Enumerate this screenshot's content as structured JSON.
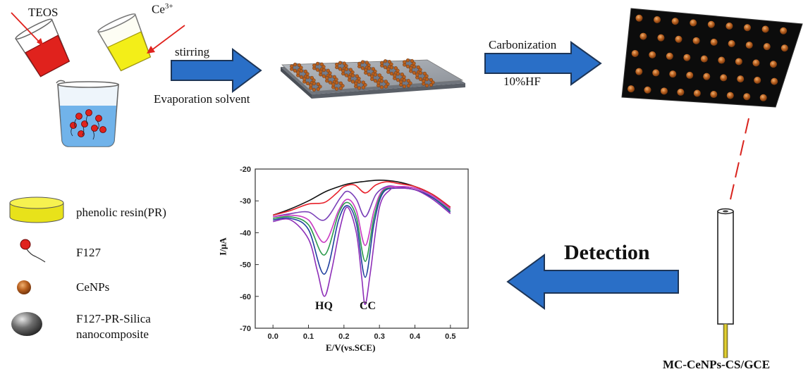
{
  "reagents": {
    "teos": "TEOS",
    "ce": "Ce",
    "ce_sup": "3+"
  },
  "steps": {
    "stirring": "stirring",
    "evaporation": "Evaporation solvent",
    "carbonization": "Carbonization",
    "hf": "10%HF",
    "detection": "Detection"
  },
  "electrode_label": "MC-CeNPs-CS/GCE",
  "legend": [
    {
      "icon": "phenolic-resin-icon",
      "lines": [
        "phenolic resin(PR)"
      ]
    },
    {
      "icon": "f127-icon",
      "lines": [
        "F127"
      ]
    },
    {
      "icon": "cenp-icon",
      "lines": [
        "CeNPs"
      ]
    },
    {
      "icon": "nanocomposite-icon",
      "lines": [
        "F127-PR-Silica",
        "nanocomposite"
      ]
    }
  ],
  "colors": {
    "arrow_fill": "#2a6fc7",
    "arrow_stroke": "#1d3557",
    "teos_liquid": "#e0221d",
    "ce_liquid": "#f3ee18",
    "water": "#5ba7e6",
    "carbon_plate": "#111111",
    "cenp": "#c06a28",
    "pr_disk": "#f2ec1e",
    "dashed_line": "#d9231d"
  },
  "chart_data": {
    "type": "line",
    "xlabel": "E/V(vs.SCE)",
    "ylabel": "I/μA",
    "xlim": [
      -0.05,
      0.55
    ],
    "ylim": [
      -70,
      -20
    ],
    "xticks": [
      0.0,
      0.1,
      0.2,
      0.3,
      0.4,
      0.5
    ],
    "xtick_labels": [
      "0.0",
      "0.1",
      "0.2",
      "0.3",
      "0.4",
      "0.5"
    ],
    "yticks": [
      -70,
      -60,
      -50,
      -40,
      -30,
      -20
    ],
    "ytick_labels": [
      "-70",
      "-60",
      "-50",
      "-40",
      "-30",
      "-20"
    ],
    "annotations": [
      {
        "text": "HQ",
        "x": 0.145,
        "y": -63.5
      },
      {
        "text": "CC",
        "x": 0.26,
        "y": -64.5
      }
    ],
    "series": [
      {
        "color": "#111111",
        "peak1_depth": 0,
        "peak2_depth": 0,
        "x": [
          0.0,
          0.05,
          0.1,
          0.15,
          0.2,
          0.22,
          0.25,
          0.3,
          0.35,
          0.4,
          0.45,
          0.5
        ],
        "y": [
          -34.5,
          -32.5,
          -30,
          -27,
          -25,
          -24.5,
          -24,
          -23.5,
          -24,
          -25.5,
          -28,
          -32
        ]
      },
      {
        "color": "#e8202a",
        "x": [
          0.0,
          0.05,
          0.1,
          0.145,
          0.18,
          0.2,
          0.23,
          0.26,
          0.29,
          0.32,
          0.35,
          0.4,
          0.45,
          0.5
        ],
        "y": [
          -34.5,
          -33,
          -31,
          -30.5,
          -27.5,
          -25.5,
          -25,
          -27.5,
          -25,
          -24,
          -24.5,
          -25.5,
          -28,
          -32
        ]
      },
      {
        "color": "#7a3fb8",
        "x": [
          0.0,
          0.05,
          0.1,
          0.145,
          0.19,
          0.21,
          0.235,
          0.26,
          0.29,
          0.32,
          0.35,
          0.4,
          0.45,
          0.5
        ],
        "y": [
          -35,
          -34,
          -33.5,
          -36,
          -29,
          -27,
          -29.5,
          -35,
          -28,
          -25.5,
          -25.5,
          -26,
          -28.5,
          -32.5
        ]
      },
      {
        "color": "#c93ac2",
        "x": [
          0.0,
          0.05,
          0.1,
          0.145,
          0.185,
          0.21,
          0.235,
          0.26,
          0.285,
          0.31,
          0.35,
          0.4,
          0.45,
          0.5
        ],
        "y": [
          -35,
          -34.5,
          -36,
          -43,
          -33,
          -29.5,
          -33,
          -44,
          -33,
          -26.5,
          -25.5,
          -26,
          -28.5,
          -32.5
        ]
      },
      {
        "color": "#2a9a4a",
        "x": [
          0.0,
          0.05,
          0.1,
          0.145,
          0.185,
          0.21,
          0.235,
          0.26,
          0.285,
          0.31,
          0.35,
          0.4,
          0.45,
          0.5
        ],
        "y": [
          -35.5,
          -35,
          -37.5,
          -47,
          -34,
          -30.5,
          -35,
          -49,
          -35,
          -27,
          -26,
          -26.5,
          -29,
          -33
        ]
      },
      {
        "color": "#1f3f9e",
        "x": [
          0.0,
          0.05,
          0.1,
          0.145,
          0.185,
          0.21,
          0.235,
          0.26,
          0.285,
          0.31,
          0.35,
          0.4,
          0.45,
          0.5
        ],
        "y": [
          -36,
          -35.5,
          -39,
          -53,
          -36,
          -31.5,
          -37,
          -54,
          -37,
          -27.5,
          -26,
          -26.5,
          -29,
          -33.5
        ]
      },
      {
        "color": "#8e2fb8",
        "x": [
          0.0,
          0.05,
          0.1,
          0.125,
          0.145,
          0.165,
          0.19,
          0.21,
          0.235,
          0.25,
          0.26,
          0.275,
          0.3,
          0.33,
          0.35,
          0.4,
          0.45,
          0.5
        ],
        "y": [
          -36.5,
          -36,
          -42,
          -52,
          -60,
          -52,
          -38,
          -32,
          -40,
          -54,
          -62.5,
          -52,
          -32,
          -26.5,
          -26,
          -26.5,
          -29.5,
          -34
        ]
      }
    ]
  }
}
